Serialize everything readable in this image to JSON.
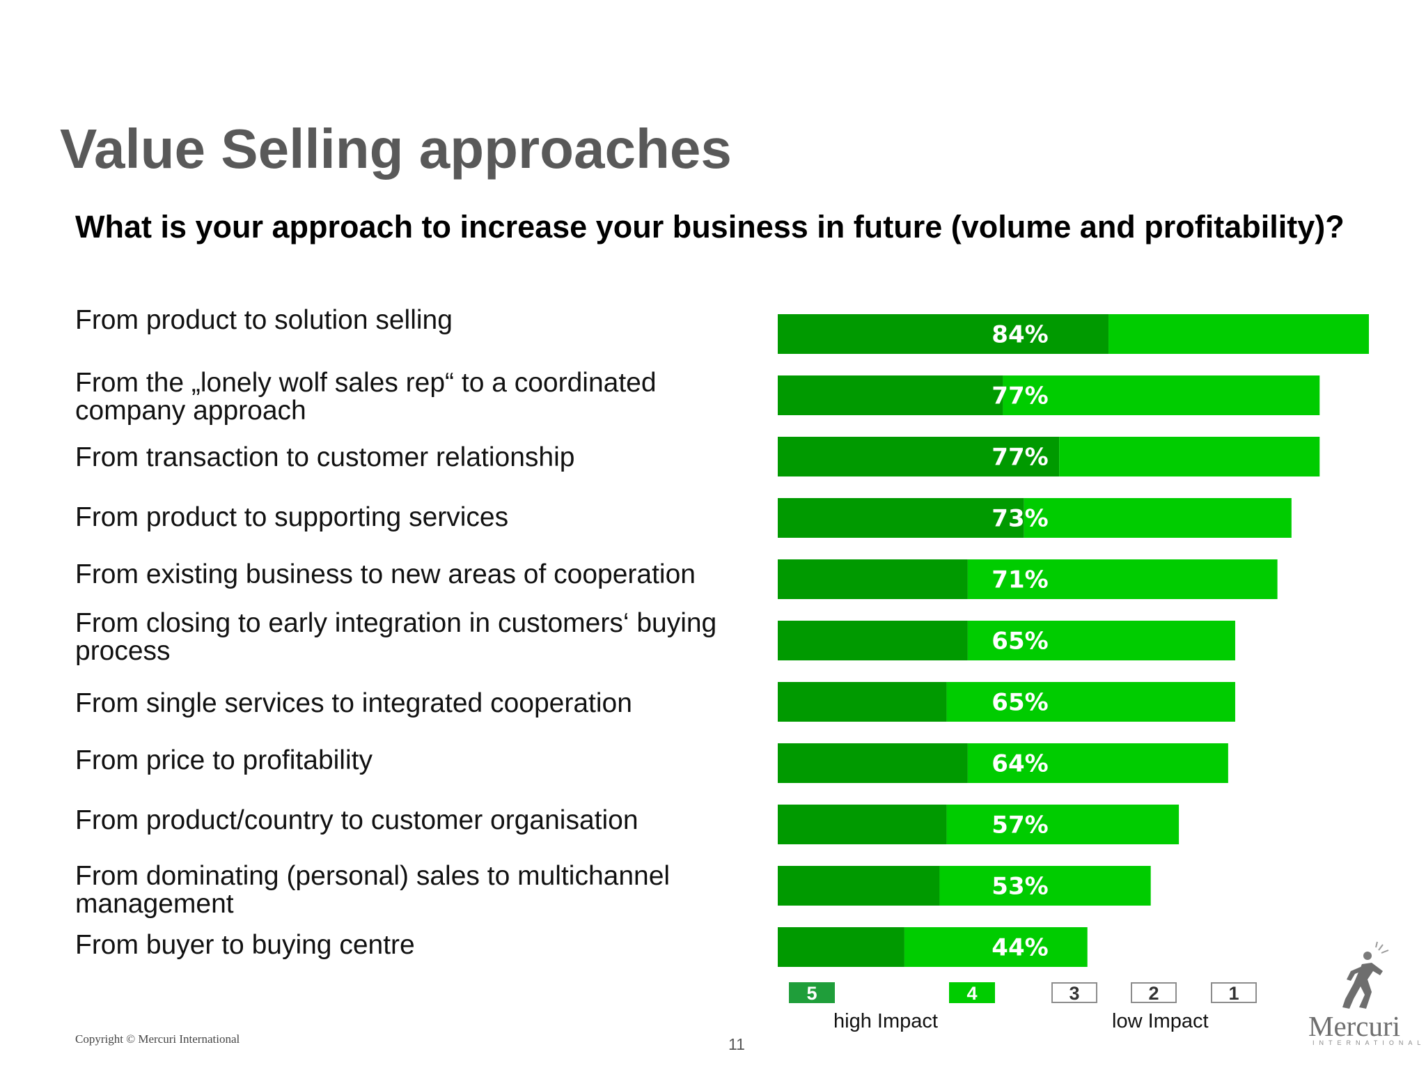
{
  "slide": {
    "title": "Value Selling approaches",
    "question": "What is your approach to increase your business in future (volume and profitability)?",
    "copyright": "Copyright © Mercuri International",
    "page_number": "11"
  },
  "logo": {
    "name": "Mercuri",
    "tagline": "INTERNATIONAL",
    "icon": "running-figure-logo"
  },
  "colors": {
    "score5": "#009a00",
    "score4": "#00cc00",
    "label_text": "#ffffff"
  },
  "legend": {
    "items": [
      {
        "label": "5",
        "color": "#1f9e3a",
        "filled": true
      },
      {
        "label": "4",
        "color": "#00cc00",
        "filled": true
      },
      {
        "label": "3",
        "color": "#ffffff",
        "filled": false
      },
      {
        "label": "2",
        "color": "#ffffff",
        "filled": false
      },
      {
        "label": "1",
        "color": "#ffffff",
        "filled": false
      }
    ],
    "high_label": "high Impact",
    "low_label": "low Impact"
  },
  "chart_data": {
    "type": "bar",
    "orientation": "horizontal",
    "stacked": true,
    "title": "",
    "categories": [
      "From product to solution selling",
      "From the „lonely wolf sales rep“ to a coordinated company approach",
      "From transaction to customer relationship",
      "From product to  supporting services",
      "From existing business to new areas of cooperation",
      "From closing to early  integration in customers‘ buying process",
      "From single services to integrated cooperation",
      "From price to profitability",
      "From product/country to customer organisation",
      "From dominating  (personal) sales to multichannel management",
      "From buyer to buying centre"
    ],
    "totals": [
      84,
      77,
      77,
      73,
      71,
      65,
      65,
      64,
      57,
      53,
      44
    ],
    "total_labels": [
      "84%",
      "77%",
      "77%",
      "73%",
      "71%",
      "65%",
      "65%",
      "64%",
      "57%",
      "53%",
      "44%"
    ],
    "series": [
      {
        "name": "5",
        "values": [
          47,
          32,
          40,
          35,
          27,
          27,
          24,
          27,
          24,
          23,
          18
        ]
      },
      {
        "name": "4",
        "values": [
          37,
          45,
          37,
          38,
          44,
          38,
          41,
          37,
          33,
          30,
          26
        ]
      }
    ],
    "xlim": [
      0,
      84
    ],
    "grid": false,
    "legend_position": "bottom"
  }
}
